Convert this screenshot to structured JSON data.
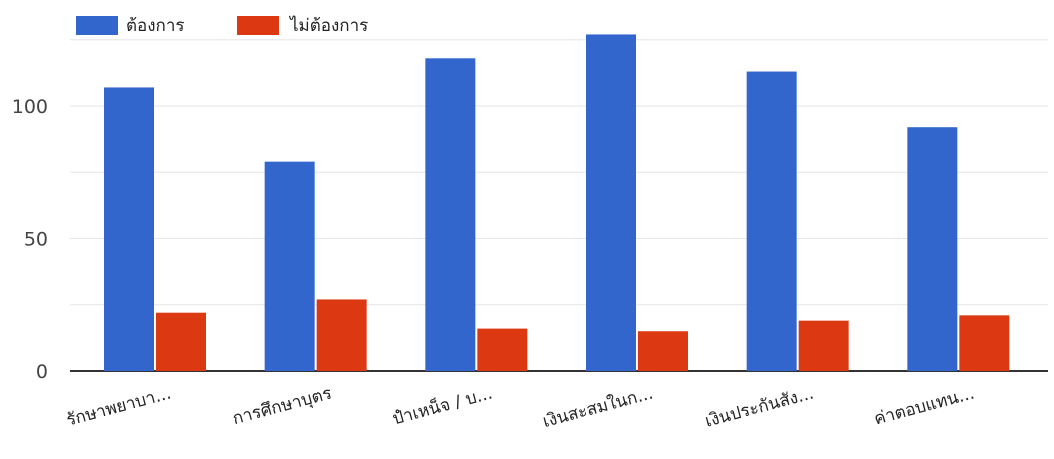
{
  "chart_data": {
    "type": "bar",
    "categories": [
      "รักษาพยาบา...",
      "การศึกษาบุตร",
      "ปำเหน็จ / บ...",
      "เงินสะสมในก...",
      "เงินประกันสัง...",
      "ค่าตอบแทน..."
    ],
    "series": [
      {
        "name": "ต้องการ",
        "values": [
          107,
          79,
          118,
          127,
          113,
          92
        ],
        "color": "#3366cc"
      },
      {
        "name": "ไม่ต้องการ",
        "values": [
          22,
          27,
          16,
          15,
          19,
          21
        ],
        "color": "#dc3912"
      }
    ],
    "y_ticks": [
      0,
      50,
      100
    ],
    "ylim": [
      0,
      135
    ],
    "grid": true,
    "legend_position": "top-left"
  }
}
